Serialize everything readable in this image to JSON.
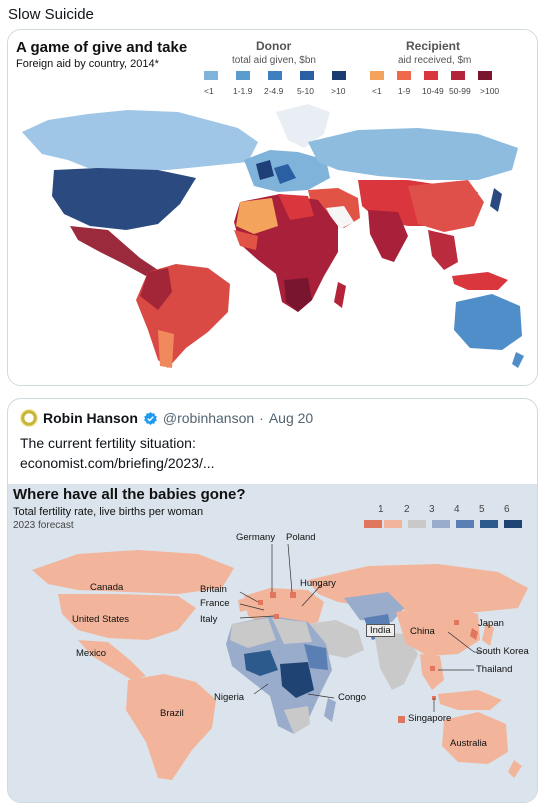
{
  "post": {
    "text": "Slow Suicide"
  },
  "map1": {
    "title": "A game of give and take",
    "subtitle": "Foreign aid by country, 2014*",
    "donor": {
      "header": "Donor",
      "sub": "total aid given, $bn",
      "labels": [
        "<1",
        "1-1.9",
        "2-4.9",
        "5-10",
        ">10"
      ],
      "colors": [
        "#7fb3da",
        "#5b9ccf",
        "#3d7fbf",
        "#2a5fa3",
        "#1a3c70"
      ]
    },
    "recipient": {
      "header": "Recipient",
      "sub": "aid received, $m",
      "labels": [
        "<1",
        "1-9",
        "10-49",
        "50-99",
        ">100"
      ],
      "colors": [
        "#f4a35c",
        "#ee6a4a",
        "#d9363e",
        "#b3233a",
        "#7a1530"
      ]
    }
  },
  "quote": {
    "name": "Robin Hanson",
    "handle": "@robinhanson",
    "date": "Aug 20",
    "text": "The current fertility situation:",
    "link": "economist.com/briefing/2023/..."
  },
  "map2": {
    "title": "Where have all the babies gone?",
    "subtitle": "Total fertility rate, live births per woman",
    "note": "2023 forecast",
    "legend": {
      "labels": [
        "1",
        "2",
        "3",
        "4",
        "5",
        "6"
      ],
      "colors": [
        "#e0765e",
        "#f2b49a",
        "#c9c9c9",
        "#9aaccc",
        "#5a7fb4",
        "#2c5a8c",
        "#1f4372"
      ]
    },
    "countries": {
      "canada": "Canada",
      "us": "United States",
      "mexico": "Mexico",
      "brazil": "Brazil",
      "germany": "Germany",
      "poland": "Poland",
      "britain": "Britain",
      "france": "France",
      "italy": "Italy",
      "hungary": "Hungary",
      "nigeria": "Nigeria",
      "congo": "Congo",
      "india": "India",
      "china": "China",
      "japan": "Japan",
      "south_korea": "South Korea",
      "thailand": "Thailand",
      "singapore": "Singapore",
      "australia": "Australia"
    }
  }
}
